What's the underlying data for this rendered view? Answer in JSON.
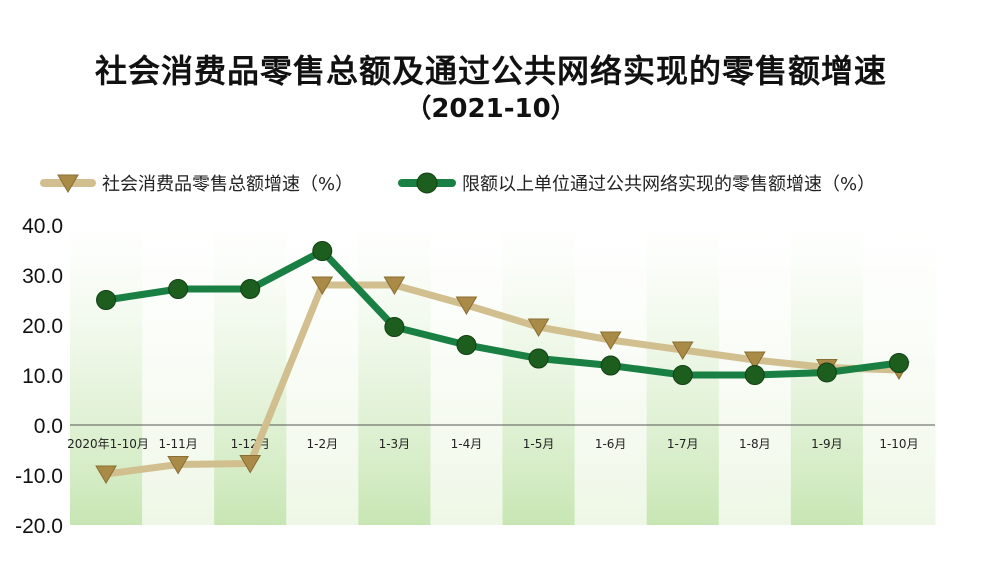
{
  "title": "社会消费品零售总额及通过公共网络实现的零售额增速",
  "subtitle": "（2021-10）",
  "colors": {
    "series1": "#d2bf8f",
    "series1_marker": "#a98a46",
    "series2": "#1a7f43",
    "series2_marker": "#1d5e1f",
    "band_dark": "#c8e6b4",
    "band_light": "#eef7e6"
  },
  "chart_data": {
    "type": "line",
    "categories": [
      "2020年1-10月",
      "1-11月",
      "1-12月",
      "1-2月",
      "1-3月",
      "1-4月",
      "1-5月",
      "1-6月",
      "1-7月",
      "1-8月",
      "1-9月",
      "1-10月"
    ],
    "series": [
      {
        "name": "社会消费品零售总额增速（%）",
        "values": [
          -9.8,
          -7.9,
          -7.7,
          28.0,
          28.0,
          24.0,
          19.6,
          17.0,
          15.0,
          13.0,
          11.5,
          11.0
        ]
      },
      {
        "name": "限额以上单位通过公共网络实现的零售额增速（%）",
        "values": [
          25.0,
          27.2,
          27.2,
          34.8,
          19.6,
          16.0,
          13.3,
          11.9,
          10.0,
          10.0,
          10.5,
          12.4
        ]
      }
    ],
    "yticks": [
      "40.0",
      "30.0",
      "20.0",
      "10.0",
      "0.0",
      "-10.0",
      "-20.0"
    ],
    "ylim": [
      -20,
      40
    ],
    "legend": "top-left",
    "grid": false
  }
}
